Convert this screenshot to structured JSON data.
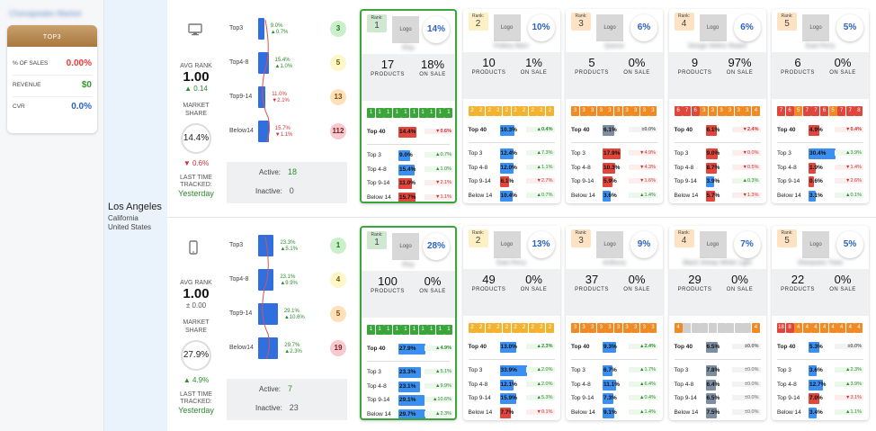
{
  "top_name_blurred": "Chesapeake Market",
  "top3": {
    "header": "TOP3",
    "rows": [
      {
        "label": "% OF SALES",
        "value": "0.00%",
        "color": "#e53935"
      },
      {
        "label": "REVENUE",
        "value": "$0",
        "color": "#2e9a2e"
      },
      {
        "label": "CVR",
        "value": "0.0%",
        "color": "#2a63c8"
      }
    ]
  },
  "location": {
    "city": "Los Angeles",
    "state": "California",
    "country": "United States"
  },
  "labels": {
    "avg_rank": "AVG RANK",
    "market_share": "MARKET SHARE",
    "last_time": "LAST TIME TRACKED:",
    "active": "Active:",
    "inactive": "Inactive:",
    "products": "PRODUCTS",
    "on_sale": "ON SALE",
    "rank": "Rank:",
    "logo": "Logo"
  },
  "sections": [
    {
      "device": "desktop",
      "device_icon": "desktop-icon",
      "avg_rank": "1.00",
      "avg_delta": "▲ 0.14",
      "avg_color": "#2e8b2e",
      "share": "14.4%",
      "share_delta": "▼ 0.6%",
      "share_color": "#cc3333",
      "last": "Yesterday",
      "active": "18",
      "inactive": "0",
      "funnel": [
        {
          "label": "Top3",
          "p": "9.0%",
          "d": "▲0.7%",
          "dc": "#2e8b2e",
          "badge": "3",
          "bbg": "#c9f0c9",
          "bc": "#1e6e1e",
          "w": 9.0
        },
        {
          "label": "Top4-8",
          "p": "15.4%",
          "d": "▲1.0%",
          "dc": "#2e8b2e",
          "badge": "5",
          "bbg": "#fff6c9",
          "bc": "#6a5a00",
          "w": 15.4
        },
        {
          "label": "Top9-14",
          "p": "11.0%",
          "d": "▼2.1%",
          "dc": "#cc3333",
          "badge": "13",
          "bbg": "#ffe0b8",
          "bc": "#7a4a00",
          "w": 11.0
        },
        {
          "label": "Below14",
          "p": "15.7%",
          "d": "▼1.1%",
          "dc": "#cc3333",
          "badge": "112",
          "bbg": "#f8c9cf",
          "bc": "#7a1a25",
          "w": 15.7
        }
      ],
      "cards": [
        {
          "rank": "1",
          "share": "14%",
          "brand": "Etsy",
          "products": "17",
          "sale": "18%",
          "top": true,
          "squares": [
            "1",
            "1",
            "1",
            "1",
            "1",
            "1",
            "1",
            "1",
            "1",
            "1"
          ],
          "sqcolors": [
            "#3aa53a",
            "#3aa53a",
            "#3aa53a",
            "#3aa53a",
            "#3aa53a",
            "#3aa53a",
            "#3aa53a",
            "#3aa53a",
            "#3aa53a",
            "#3aa53a"
          ],
          "top40": {
            "v": "14.4%",
            "d": "▼0.6%",
            "t": "dn",
            "c": "#e0463c",
            "w": 14.4
          },
          "rows": [
            {
              "l": "Top 3",
              "v": "9.0%",
              "d": "▲0.7%",
              "t": "up",
              "c": "#3b8ff0",
              "w": 9.0
            },
            {
              "l": "Top 4-8",
              "v": "15.4%",
              "d": "▲1.0%",
              "t": "up",
              "c": "#3b8ff0",
              "w": 15.4
            },
            {
              "l": "Top 9-14",
              "v": "11.0%",
              "d": "▼2.1%",
              "t": "dn",
              "c": "#e0463c",
              "w": 11.0
            },
            {
              "l": "Below 14",
              "v": "15.7%",
              "d": "▼1.1%",
              "t": "dn",
              "c": "#e0463c",
              "w": 15.7
            }
          ]
        },
        {
          "rank": "2",
          "share": "10%",
          "brand": "Pottery Barn",
          "products": "10",
          "sale": "1%",
          "top": false,
          "squares": [
            "2",
            "2",
            "2",
            "2",
            "2",
            "2",
            "2",
            "2",
            "2",
            "2"
          ],
          "sqcolors": [
            "#f2b430",
            "#f2b430",
            "#f2b430",
            "#f2b430",
            "#f2b430",
            "#f2b430",
            "#f2b430",
            "#f2b430",
            "#f2b430",
            "#f2b430"
          ],
          "top40": {
            "v": "10.3%",
            "d": "▲0.4%",
            "t": "up",
            "c": "#3b8ff0",
            "w": 10.3
          },
          "rows": [
            {
              "l": "Top 3",
              "v": "12.4%",
              "d": "▲7.3%",
              "t": "up",
              "c": "#3b8ff0",
              "w": 12.4
            },
            {
              "l": "Top 4-8",
              "v": "12.0%",
              "d": "▲1.1%",
              "t": "up",
              "c": "#3b8ff0",
              "w": 12.0
            },
            {
              "l": "Top 9-14",
              "v": "6.1%",
              "d": "▼2.7%",
              "t": "dn",
              "c": "#e0463c",
              "w": 6.1
            },
            {
              "l": "Below 14",
              "v": "10.4%",
              "d": "▲0.7%",
              "t": "up",
              "c": "#3b8ff0",
              "w": 10.4
            }
          ]
        },
        {
          "rank": "3",
          "share": "6%",
          "brand": "Quince",
          "products": "5",
          "sale": "0%",
          "top": false,
          "squares": [
            "3",
            "3",
            "3",
            "3",
            "3",
            "3",
            "3",
            "3",
            "3",
            "3"
          ],
          "sqcolors": [
            "#f08a24",
            "#f08a24",
            "#f08a24",
            "#f08a24",
            "#f08a24",
            "#f08a24",
            "#f08a24",
            "#f08a24",
            "#f08a24",
            "#f08a24"
          ],
          "top40": {
            "v": "6.1%",
            "d": "±0.0%",
            "t": "eq",
            "c": "#7d8ea3",
            "w": 6.1
          },
          "rows": [
            {
              "l": "Top 3",
              "v": "17.9%",
              "d": "▼4.9%",
              "t": "dn",
              "c": "#e0463c",
              "w": 17.9
            },
            {
              "l": "Top 4-8",
              "v": "10.3%",
              "d": "▼4.3%",
              "t": "dn",
              "c": "#e0463c",
              "w": 10.3
            },
            {
              "l": "Top 9-14",
              "v": "5.9%",
              "d": "▼1.6%",
              "t": "dn",
              "c": "#e0463c",
              "w": 5.9
            },
            {
              "l": "Below 14",
              "v": "3.6%",
              "d": "▲1.4%",
              "t": "up",
              "c": "#3b8ff0",
              "w": 3.6
            }
          ]
        },
        {
          "rank": "4",
          "share": "6%",
          "brand": "Design Within Reach",
          "products": "9",
          "sale": "97%",
          "top": false,
          "squares": [
            "6",
            "7",
            "6",
            "3",
            "3",
            "3",
            "3",
            "3",
            "3",
            "4"
          ],
          "sqcolors": [
            "#e0463c",
            "#e0463c",
            "#e0463c",
            "#f08a24",
            "#f08a24",
            "#f08a24",
            "#f08a24",
            "#f08a24",
            "#f08a24",
            "#f08a24"
          ],
          "top40": {
            "v": "6.1%",
            "d": "▼2.4%",
            "t": "dn",
            "c": "#e0463c",
            "w": 6.1
          },
          "rows": [
            {
              "l": "Top 3",
              "v": "9.0%",
              "d": "▼0.0%",
              "t": "dn",
              "c": "#e0463c",
              "w": 9.0
            },
            {
              "l": "Top 4-8",
              "v": "8.7%",
              "d": "▼0.5%",
              "t": "dn",
              "c": "#e0463c",
              "w": 8.7
            },
            {
              "l": "Top 9-14",
              "v": "3.9%",
              "d": "▲0.3%",
              "t": "up",
              "c": "#3b8ff0",
              "w": 3.9
            },
            {
              "l": "Below 14",
              "v": "5.7%",
              "d": "▼1.3%",
              "t": "dn",
              "c": "#e0463c",
              "w": 5.7
            }
          ]
        },
        {
          "rank": "5",
          "share": "5%",
          "brand": "East Perry",
          "products": "6",
          "sale": "0%",
          "top": false,
          "squares": [
            "7",
            "6",
            "5",
            "7",
            "7",
            "6",
            "5",
            "7",
            "7",
            "8"
          ],
          "sqcolors": [
            "#e0463c",
            "#e0463c",
            "#f08a24",
            "#e0463c",
            "#e0463c",
            "#e0463c",
            "#f08a24",
            "#e0463c",
            "#e0463c",
            "#e0463c"
          ],
          "top40": {
            "v": "4.9%",
            "d": "▼0.4%",
            "t": "dn",
            "c": "#e0463c",
            "w": 4.9
          },
          "rows": [
            {
              "l": "Top 3",
              "v": "30.4%",
              "d": "▲3.9%",
              "t": "up",
              "c": "#3b8ff0",
              "w": 30.4
            },
            {
              "l": "Top 4-8",
              "v": "1.9%",
              "d": "▼1.4%",
              "t": "dn",
              "c": "#e0463c",
              "w": 1.9
            },
            {
              "l": "Top 9-14",
              "v": "0.6%",
              "d": "▼2.6%",
              "t": "dn",
              "c": "#e0463c",
              "w": 0.6
            },
            {
              "l": "Below 14",
              "v": "3.1%",
              "d": "▲0.1%",
              "t": "up",
              "c": "#3b8ff0",
              "w": 3.1
            }
          ]
        }
      ]
    },
    {
      "device": "mobile",
      "device_icon": "mobile-icon",
      "avg_rank": "1.00",
      "avg_delta": "± 0.00",
      "avg_color": "#555",
      "share": "27.9%",
      "share_delta": "▲ 4.9%",
      "share_color": "#2e8b2e",
      "last": "Yesterday",
      "active": "7",
      "inactive": "23",
      "funnel": [
        {
          "label": "Top3",
          "p": "23.3%",
          "d": "▲5.1%",
          "dc": "#2e8b2e",
          "badge": "1",
          "bbg": "#c9f0c9",
          "bc": "#1e6e1e",
          "w": 23.3
        },
        {
          "label": "Top4-8",
          "p": "23.1%",
          "d": "▲9.9%",
          "dc": "#2e8b2e",
          "badge": "4",
          "bbg": "#fff6c9",
          "bc": "#6a5a00",
          "w": 23.1
        },
        {
          "label": "Top9-14",
          "p": "29.1%",
          "d": "▲10.6%",
          "dc": "#2e8b2e",
          "badge": "5",
          "bbg": "#ffe0b8",
          "bc": "#7a4a00",
          "w": 29.1
        },
        {
          "label": "Below14",
          "p": "29.7%",
          "d": "▲2.3%",
          "dc": "#2e8b2e",
          "badge": "19",
          "bbg": "#f8c9cf",
          "bc": "#7a1a25",
          "w": 29.7
        }
      ],
      "cards": [
        {
          "rank": "1",
          "share": "28%",
          "brand": "Etsy",
          "products": "100",
          "sale": "0%",
          "top": true,
          "squares": [
            "1",
            "1",
            "1",
            "1",
            "1",
            "1",
            "1",
            "1",
            "1",
            "1"
          ],
          "sqcolors": [
            "#3aa53a",
            "#3aa53a",
            "#3aa53a",
            "#3aa53a",
            "#3aa53a",
            "#3aa53a",
            "#3aa53a",
            "#3aa53a",
            "#3aa53a",
            "#3aa53a"
          ],
          "top40": {
            "v": "27.9%",
            "d": "▲4.9%",
            "t": "up",
            "c": "#3b8ff0",
            "w": 27.9
          },
          "rows": [
            {
              "l": "Top 3",
              "v": "23.3%",
              "d": "▲5.1%",
              "t": "up",
              "c": "#3b8ff0",
              "w": 23.3
            },
            {
              "l": "Top 4-8",
              "v": "23.1%",
              "d": "▲9.9%",
              "t": "up",
              "c": "#3b8ff0",
              "w": 23.1
            },
            {
              "l": "Top 9-14",
              "v": "29.1%",
              "d": "▲10.6%",
              "t": "up",
              "c": "#3b8ff0",
              "w": 29.1
            },
            {
              "l": "Below 14",
              "v": "29.7%",
              "d": "▲2.3%",
              "t": "up",
              "c": "#3b8ff0",
              "w": 29.7
            }
          ]
        },
        {
          "rank": "2",
          "share": "13%",
          "brand": "East Perry",
          "products": "49",
          "sale": "0%",
          "top": false,
          "squares": [
            "2",
            "2",
            "2",
            "2",
            "2",
            "2",
            "2",
            "2",
            "2",
            "2"
          ],
          "sqcolors": [
            "#f2b430",
            "#f2b430",
            "#f2b430",
            "#f2b430",
            "#f2b430",
            "#f2b430",
            "#f2b430",
            "#f2b430",
            "#f2b430",
            "#f2b430"
          ],
          "top40": {
            "v": "13.0%",
            "d": "▲2.3%",
            "t": "up",
            "c": "#3b8ff0",
            "w": 13.0
          },
          "rows": [
            {
              "l": "Top 3",
              "v": "33.9%",
              "d": "▲2.0%",
              "t": "up",
              "c": "#3b8ff0",
              "w": 33.9
            },
            {
              "l": "Top 4-8",
              "v": "12.1%",
              "d": "▲2.0%",
              "t": "up",
              "c": "#3b8ff0",
              "w": 12.1
            },
            {
              "l": "Top 9-14",
              "v": "15.9%",
              "d": "▲5.3%",
              "t": "up",
              "c": "#3b8ff0",
              "w": 15.9
            },
            {
              "l": "Below 14",
              "v": "7.7%",
              "d": "▼0.1%",
              "t": "dn",
              "c": "#e0463c",
              "w": 7.7
            }
          ]
        },
        {
          "rank": "3",
          "share": "9%",
          "brand": "Anthony",
          "products": "37",
          "sale": "0%",
          "top": false,
          "squares": [
            "3",
            "3",
            "3",
            "3",
            "3",
            "3",
            "3",
            "3",
            "3",
            "3"
          ],
          "sqcolors": [
            "#f08a24",
            "#f08a24",
            "#f08a24",
            "#f08a24",
            "#f08a24",
            "#f08a24",
            "#f08a24",
            "#f08a24",
            "#f08a24",
            "#f08a24"
          ],
          "top40": {
            "v": "9.3%",
            "d": "▲2.4%",
            "t": "up",
            "c": "#3b8ff0",
            "w": 9.3
          },
          "rows": [
            {
              "l": "Top 3",
              "v": "6.7%",
              "d": "▲1.7%",
              "t": "up",
              "c": "#3b8ff0",
              "w": 6.7
            },
            {
              "l": "Top 4-8",
              "v": "11.1%",
              "d": "▲6.4%",
              "t": "up",
              "c": "#3b8ff0",
              "w": 11.1
            },
            {
              "l": "Top 9-14",
              "v": "7.3%",
              "d": "▲0.4%",
              "t": "up",
              "c": "#3b8ff0",
              "w": 7.3
            },
            {
              "l": "Below 14",
              "v": "9.1%",
              "d": "▲1.4%",
              "t": "up",
              "c": "#3b8ff0",
              "w": 9.1
            }
          ]
        },
        {
          "rank": "4",
          "share": "7%",
          "brand": "Black Sheep White Light",
          "products": "29",
          "sale": "0%",
          "top": false,
          "squares": [
            "4",
            "",
            "",
            "",
            "",
            "",
            "",
            "",
            "",
            "4"
          ],
          "sqcolors": [
            "#f08a24",
            "#cfcfcf",
            "#cfcfcf",
            "#cfcfcf",
            "#cfcfcf",
            "#cfcfcf",
            "#cfcfcf",
            "#cfcfcf",
            "#cfcfcf",
            "#f08a24"
          ],
          "top40": {
            "v": "6.5%",
            "d": "±0.0%",
            "t": "eq",
            "c": "#7d8ea3",
            "w": 6.5
          },
          "rows": [
            {
              "l": "Top 3",
              "v": "7.8%",
              "d": "±0.0%",
              "t": "eq",
              "c": "#7d8ea3",
              "w": 7.8
            },
            {
              "l": "Top 4-8",
              "v": "6.4%",
              "d": "±0.0%",
              "t": "eq",
              "c": "#7d8ea3",
              "w": 6.4
            },
            {
              "l": "Top 9-14",
              "v": "6.5%",
              "d": "±0.0%",
              "t": "eq",
              "c": "#7d8ea3",
              "w": 6.5
            },
            {
              "l": "Below 14",
              "v": "7.5%",
              "d": "±0.0%",
              "t": "eq",
              "c": "#7d8ea3",
              "w": 7.5
            }
          ]
        },
        {
          "rank": "5",
          "share": "5%",
          "brand": "Sheepskin Town",
          "products": "22",
          "sale": "0%",
          "top": false,
          "squares": [
            "18",
            "8",
            "4",
            "4",
            "4",
            "4",
            "4",
            "4",
            "4",
            "4"
          ],
          "sqcolors": [
            "#e0463c",
            "#e0463c",
            "#f08a24",
            "#f08a24",
            "#f08a24",
            "#f08a24",
            "#f08a24",
            "#f08a24",
            "#f08a24",
            "#f08a24"
          ],
          "top40": {
            "v": "5.3%",
            "d": "±0.0%",
            "t": "eq",
            "c": "#3b8ff0",
            "w": 5.3
          },
          "rows": [
            {
              "l": "Top 3",
              "v": "3.6%",
              "d": "▲2.3%",
              "t": "up",
              "c": "#3b8ff0",
              "w": 3.6
            },
            {
              "l": "Top 4-8",
              "v": "12.7%",
              "d": "▲3.9%",
              "t": "up",
              "c": "#3b8ff0",
              "w": 12.7
            },
            {
              "l": "Top 9-14",
              "v": "7.0%",
              "d": "▼3.1%",
              "t": "dn",
              "c": "#e0463c",
              "w": 7.0
            },
            {
              "l": "Below 14",
              "v": "3.4%",
              "d": "▲1.1%",
              "t": "up",
              "c": "#3b8ff0",
              "w": 3.4
            }
          ]
        }
      ]
    }
  ]
}
